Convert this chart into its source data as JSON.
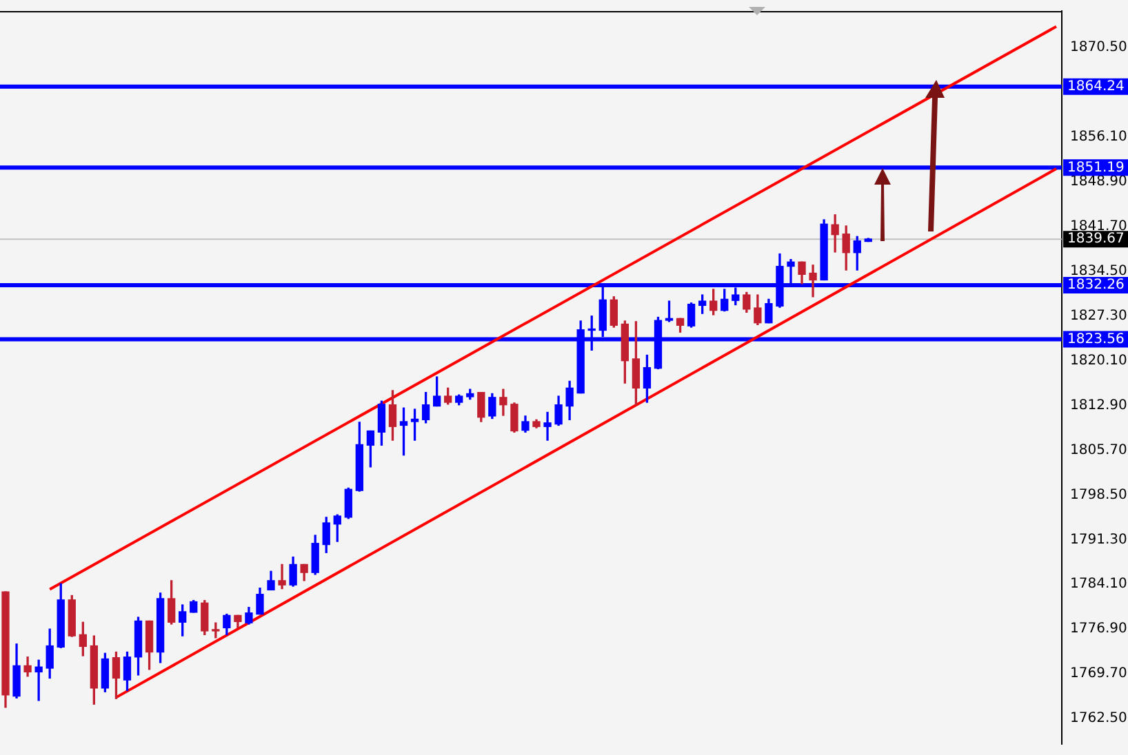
{
  "chart_data": {
    "type": "candlestick",
    "categories": [
      null,
      null,
      null,
      null,
      null,
      null,
      null,
      null,
      null,
      null,
      null,
      null,
      null,
      null,
      null,
      null,
      null,
      null,
      null,
      null,
      null,
      null,
      null,
      null,
      null,
      null,
      null,
      null,
      null,
      null,
      null,
      null,
      null,
      null,
      null,
      null,
      null,
      null,
      null,
      null,
      null,
      null,
      null,
      null,
      null,
      null,
      null,
      null,
      null,
      null,
      null,
      null,
      null,
      null,
      null,
      null,
      null,
      null,
      null,
      null,
      null,
      null,
      null,
      null,
      null,
      null,
      null,
      null,
      null,
      null,
      null,
      null,
      null,
      null,
      null,
      null,
      null,
      null,
      null,
      null,
      null,
      null,
      null,
      null,
      null,
      null,
      null,
      null,
      null,
      null,
      null,
      null,
      null,
      null,
      null,
      null
    ],
    "ohlc": [
      [
        1782.9,
        1782.9,
        1764.3,
        1766.3
      ],
      [
        1766.1,
        1774.5,
        1765.8,
        1771.0
      ],
      [
        1771.0,
        1772.4,
        1769.3,
        1770.0
      ],
      [
        1770.0,
        1771.9,
        1765.4,
        1770.8
      ],
      [
        1770.6,
        1776.9,
        1769.0,
        1774.2
      ],
      [
        1774.0,
        1784.2,
        1773.9,
        1781.6
      ],
      [
        1781.6,
        1782.3,
        1775.7,
        1775.8
      ],
      [
        1776.0,
        1778.0,
        1772.6,
        1774.1
      ],
      [
        1774.2,
        1775.8,
        1764.8,
        1767.4
      ],
      [
        1767.4,
        1773.0,
        1766.8,
        1772.1
      ],
      [
        1772.3,
        1773.2,
        1765.7,
        1769.0
      ],
      [
        1768.7,
        1773.2,
        1767.0,
        1772.4
      ],
      [
        1772.4,
        1778.8,
        1769.5,
        1778.2
      ],
      [
        1778.2,
        1778.2,
        1770.4,
        1773.2
      ],
      [
        1773.2,
        1782.7,
        1771.5,
        1781.8
      ],
      [
        1781.8,
        1784.7,
        1777.7,
        1778.0
      ],
      [
        1778.0,
        1780.8,
        1775.8,
        1779.7
      ],
      [
        1779.6,
        1781.5,
        1779.6,
        1781.3
      ],
      [
        1781.1,
        1781.5,
        1776.0,
        1776.6
      ],
      [
        1776.7,
        1777.9,
        1775.5,
        1776.6
      ],
      [
        1777.1,
        1779.3,
        1776.0,
        1779.1
      ],
      [
        1779.1,
        1779.1,
        1777.1,
        1778.1
      ],
      [
        1777.9,
        1780.4,
        1777.7,
        1779.5
      ],
      [
        1779.3,
        1783.5,
        1779.3,
        1782.5
      ],
      [
        1783.2,
        1786.2,
        1783.2,
        1784.7
      ],
      [
        1784.7,
        1787.3,
        1783.4,
        1784.0
      ],
      [
        1784.0,
        1788.5,
        1783.8,
        1787.3
      ],
      [
        1787.3,
        1787.3,
        1784.7,
        1786.0
      ],
      [
        1786.0,
        1792.0,
        1785.7,
        1790.7
      ],
      [
        1790.5,
        1794.9,
        1789.2,
        1794.0
      ],
      [
        1793.8,
        1795.3,
        1791.0,
        1795.1
      ],
      [
        1794.9,
        1799.6,
        1794.7,
        1799.4
      ],
      [
        1799.2,
        1810.2,
        1799.1,
        1806.6
      ],
      [
        1806.5,
        1808.8,
        1803.0,
        1808.8
      ],
      [
        1808.6,
        1813.6,
        1806.5,
        1813.1
      ],
      [
        1813.0,
        1815.3,
        1807.3,
        1809.5
      ],
      [
        1809.7,
        1812.5,
        1804.9,
        1810.3
      ],
      [
        1810.3,
        1812.3,
        1807.3,
        1810.7
      ],
      [
        1810.6,
        1815.0,
        1810.1,
        1813.0
      ],
      [
        1812.8,
        1817.5,
        1812.8,
        1814.4
      ],
      [
        1814.4,
        1815.7,
        1813.1,
        1813.4
      ],
      [
        1813.4,
        1814.6,
        1813.0,
        1814.4
      ],
      [
        1814.3,
        1815.5,
        1813.9,
        1814.8
      ],
      [
        1815.0,
        1815.0,
        1810.3,
        1811.0
      ],
      [
        1811.2,
        1814.8,
        1810.8,
        1814.2
      ],
      [
        1814.2,
        1815.5,
        1811.3,
        1813.0
      ],
      [
        1813.1,
        1813.3,
        1808.6,
        1808.8
      ],
      [
        1808.9,
        1811.2,
        1808.6,
        1810.3
      ],
      [
        1810.3,
        1810.6,
        1809.3,
        1809.5
      ],
      [
        1809.5,
        1811.8,
        1807.3,
        1810.1
      ],
      [
        1809.9,
        1814.4,
        1809.7,
        1813.0
      ],
      [
        1812.8,
        1816.8,
        1810.6,
        1815.7
      ],
      [
        1814.9,
        1826.5,
        1814.9,
        1825.1
      ],
      [
        1825.0,
        1827.3,
        1821.8,
        1825.1
      ],
      [
        1825.0,
        1832.4,
        1824.0,
        1829.9
      ],
      [
        1829.9,
        1830.4,
        1825.5,
        1825.8
      ],
      [
        1826.0,
        1826.5,
        1816.5,
        1820.1
      ],
      [
        1820.4,
        1826.4,
        1813.0,
        1815.7
      ],
      [
        1815.7,
        1821.0,
        1813.4,
        1819.0
      ],
      [
        1818.9,
        1827.1,
        1818.8,
        1826.6
      ],
      [
        1826.6,
        1829.7,
        1826.4,
        1826.9
      ],
      [
        1826.9,
        1826.9,
        1824.7,
        1825.8
      ],
      [
        1825.7,
        1829.4,
        1825.5,
        1829.2
      ],
      [
        1829.0,
        1830.7,
        1827.7,
        1829.7
      ],
      [
        1829.7,
        1831.6,
        1827.5,
        1828.2
      ],
      [
        1828.2,
        1831.6,
        1828.1,
        1830.0
      ],
      [
        1829.8,
        1831.8,
        1829.1,
        1830.7
      ],
      [
        1830.7,
        1831.1,
        1827.9,
        1828.4
      ],
      [
        1828.6,
        1830.7,
        1825.9,
        1826.2
      ],
      [
        1826.2,
        1830.0,
        1826.2,
        1829.3
      ],
      [
        1828.9,
        1837.3,
        1828.7,
        1835.3
      ],
      [
        1835.3,
        1836.4,
        1832.4,
        1836.0
      ],
      [
        1836.0,
        1836.0,
        1832.5,
        1834.0
      ],
      [
        1834.2,
        1835.5,
        1830.4,
        1833.1
      ],
      [
        1833.1,
        1842.8,
        1833.1,
        1842.1
      ],
      [
        1842.0,
        1843.6,
        1837.6,
        1840.4
      ],
      [
        1840.5,
        1841.8,
        1834.7,
        1837.5
      ],
      [
        1837.5,
        1840.1,
        1834.7,
        1839.4
      ],
      [
        1839.3,
        1839.8,
        1839.3,
        1839.7
      ],
      null,
      null,
      null,
      null,
      null,
      null,
      null,
      null,
      null,
      null,
      null,
      null,
      null,
      null,
      null,
      null,
      null
    ],
    "colors": [
      "#c0202f",
      "#0000ff",
      "#c0202f",
      "#0000ff",
      "#0000ff",
      "#0000ff",
      "#c0202f",
      "#c0202f",
      "#c0202f",
      "#0000ff",
      "#c0202f",
      "#0000ff",
      "#0000ff",
      "#c0202f",
      "#0000ff",
      "#c0202f",
      "#0000ff",
      "#0000ff",
      "#c0202f",
      "#c0202f",
      "#0000ff",
      "#c0202f",
      "#0000ff",
      "#0000ff",
      "#0000ff",
      "#c0202f",
      "#0000ff",
      "#c0202f",
      "#0000ff",
      "#0000ff",
      "#0000ff",
      "#0000ff",
      "#0000ff",
      "#0000ff",
      "#0000ff",
      "#c0202f",
      "#0000ff",
      "#0000ff",
      "#0000ff",
      "#0000ff",
      "#c0202f",
      "#0000ff",
      "#0000ff",
      "#c0202f",
      "#0000ff",
      "#c0202f",
      "#c0202f",
      "#0000ff",
      "#c0202f",
      "#0000ff",
      "#0000ff",
      "#0000ff",
      "#0000ff",
      "#0000ff",
      "#0000ff",
      "#c0202f",
      "#c0202f",
      "#c0202f",
      "#0000ff",
      "#0000ff",
      "#0000ff",
      "#c0202f",
      "#0000ff",
      "#0000ff",
      "#c0202f",
      "#0000ff",
      "#0000ff",
      "#c0202f",
      "#c0202f",
      "#0000ff",
      "#0000ff",
      "#0000ff",
      "#c0202f",
      "#c0202f",
      "#0000ff",
      "#c0202f",
      "#c0202f",
      "#0000ff",
      "#0000ff",
      null,
      null,
      null,
      null,
      null,
      null,
      null,
      null,
      null,
      null,
      null,
      null,
      null,
      null,
      null,
      null,
      null
    ],
    "series": [
      {
        "type": "line",
        "color": "#ff0000",
        "values": [
          null,
          null,
          null,
          null,
          1783.3,
          null,
          null,
          null,
          null,
          null,
          null,
          null,
          null,
          null,
          null,
          null,
          null,
          null,
          null,
          null,
          null,
          null,
          null,
          null,
          null,
          null,
          null,
          null,
          null,
          null,
          null,
          null,
          null,
          null,
          null,
          null,
          null,
          null,
          null,
          null,
          null,
          null,
          null,
          null,
          null,
          null,
          null,
          null,
          null,
          null,
          null,
          null,
          null,
          null,
          null,
          null,
          null,
          null,
          null,
          null,
          null,
          null,
          null,
          null,
          null,
          null,
          null,
          null,
          null,
          null,
          null,
          null,
          null,
          null,
          null,
          null,
          null,
          null,
          null,
          null,
          null,
          null,
          null,
          null,
          null,
          null,
          null,
          null,
          null,
          null,
          null,
          null,
          null,
          null,
          null,
          1873.9
        ]
      },
      {
        "type": "line",
        "color": "#ff0000",
        "values": [
          null,
          null,
          null,
          null,
          null,
          null,
          null,
          null,
          null,
          null,
          1765.9,
          null,
          null,
          null,
          null,
          null,
          null,
          null,
          null,
          null,
          null,
          null,
          null,
          null,
          null,
          null,
          null,
          null,
          null,
          null,
          null,
          null,
          null,
          null,
          null,
          null,
          null,
          null,
          null,
          null,
          null,
          null,
          null,
          null,
          null,
          null,
          null,
          null,
          null,
          null,
          null,
          null,
          null,
          null,
          null,
          null,
          null,
          null,
          null,
          null,
          null,
          null,
          null,
          null,
          null,
          null,
          null,
          null,
          null,
          null,
          null,
          null,
          null,
          null,
          null,
          null,
          null,
          null,
          null,
          null,
          null,
          null,
          null,
          null,
          null,
          null,
          null,
          null,
          null,
          null,
          null,
          null,
          null,
          null,
          null,
          1851.0
        ]
      }
    ],
    "ylim": [
      1758.4,
      1876.4
    ],
    "yticks": [
      {
        "value": 1762.5,
        "label": "1762.50"
      },
      {
        "value": 1769.7,
        "label": "1769.70"
      },
      {
        "value": 1776.9,
        "label": "1776.90"
      },
      {
        "value": 1784.1,
        "label": "1784.10"
      },
      {
        "value": 1791.3,
        "label": "1791.30"
      },
      {
        "value": 1798.5,
        "label": "1798.50"
      },
      {
        "value": 1805.7,
        "label": "1805.70"
      },
      {
        "value": 1812.9,
        "label": "1812.90"
      },
      {
        "value": 1820.1,
        "label": "1820.10"
      },
      {
        "value": 1827.3,
        "label": "1827.30"
      },
      {
        "value": 1834.5,
        "label": "1834.50"
      },
      {
        "value": 1841.7,
        "label": "1841.70"
      },
      {
        "value": 1848.9,
        "label": "1848.90"
      },
      {
        "value": 1856.1,
        "label": "1856.10"
      },
      {
        "value": 1870.5,
        "label": "1870.50"
      }
    ],
    "ref_lines": [
      {
        "axis": "y",
        "value": 1864.24,
        "label": "1864.24",
        "color": "#0000ff"
      },
      {
        "axis": "y",
        "value": 1851.19,
        "label": "1851.19",
        "color": "#0000ff"
      },
      {
        "axis": "y",
        "value": 1839.67,
        "label": "1839.67",
        "color": "#c0c0c0"
      },
      {
        "axis": "y",
        "value": 1832.26,
        "label": "1832.26",
        "color": "#0000ff"
      },
      {
        "axis": "y",
        "value": 1823.56,
        "label": "1823.56",
        "color": "#0000ff"
      }
    ],
    "legend": false,
    "grid": false,
    "tick_labels": "y"
  }
}
